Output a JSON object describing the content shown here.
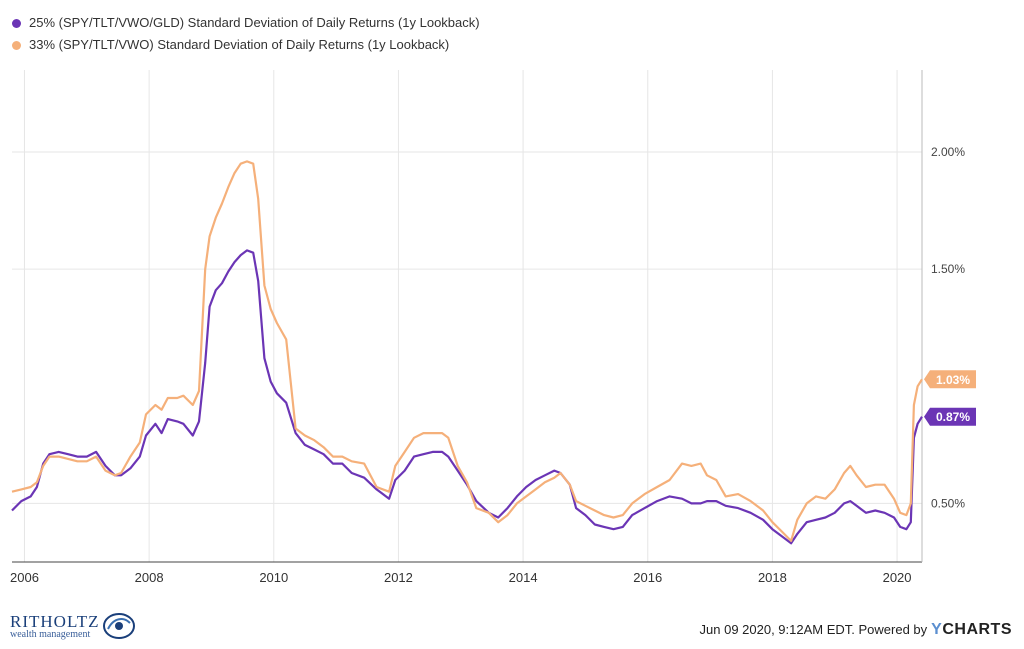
{
  "colors": {
    "series1": "#6b35b5",
    "series2": "#f5b07a",
    "grid": "#e6e6e6",
    "axis": "#444444"
  },
  "footer": {
    "brand_name": "RITHOLTZ",
    "brand_sub": "wealth management",
    "timestamp": "Jun 09 2020, 9:12AM EDT. Powered by",
    "provider_y": "Y",
    "provider_rest": "CHARTS"
  },
  "chart_data": {
    "type": "line",
    "title": "",
    "xlabel": "",
    "ylabel": "",
    "xlim": [
      2005.8,
      2020.4
    ],
    "ylim": [
      0.25,
      2.35
    ],
    "grid": true,
    "legend_position": "top-left",
    "y_ticks": [
      0.5,
      1.5,
      2.0
    ],
    "y_tick_labels": [
      "0.50%",
      "1.50%",
      "2.00%"
    ],
    "x_ticks": [
      2006,
      2008,
      2010,
      2012,
      2014,
      2016,
      2018,
      2020
    ],
    "x_tick_labels": [
      "2006",
      "2008",
      "2010",
      "2012",
      "2014",
      "2016",
      "2018",
      "2020"
    ],
    "series": [
      {
        "name": "25% (SPY/TLT/VWO/GLD) Standard Deviation of Daily Returns (1y Lookback)",
        "end_label": "0.87%",
        "points": [
          [
            2005.8,
            0.47
          ],
          [
            2005.95,
            0.51
          ],
          [
            2006.1,
            0.53
          ],
          [
            2006.2,
            0.57
          ],
          [
            2006.3,
            0.67
          ],
          [
            2006.4,
            0.71
          ],
          [
            2006.55,
            0.72
          ],
          [
            2006.7,
            0.71
          ],
          [
            2006.85,
            0.7
          ],
          [
            2007.0,
            0.7
          ],
          [
            2007.15,
            0.72
          ],
          [
            2007.3,
            0.66
          ],
          [
            2007.45,
            0.62
          ],
          [
            2007.55,
            0.62
          ],
          [
            2007.7,
            0.65
          ],
          [
            2007.85,
            0.7
          ],
          [
            2007.95,
            0.79
          ],
          [
            2008.1,
            0.84
          ],
          [
            2008.2,
            0.8
          ],
          [
            2008.3,
            0.86
          ],
          [
            2008.45,
            0.85
          ],
          [
            2008.55,
            0.84
          ],
          [
            2008.7,
            0.79
          ],
          [
            2008.8,
            0.85
          ],
          [
            2008.9,
            1.1
          ],
          [
            2008.97,
            1.34
          ],
          [
            2009.07,
            1.41
          ],
          [
            2009.17,
            1.44
          ],
          [
            2009.27,
            1.49
          ],
          [
            2009.37,
            1.53
          ],
          [
            2009.47,
            1.56
          ],
          [
            2009.57,
            1.58
          ],
          [
            2009.67,
            1.57
          ],
          [
            2009.75,
            1.45
          ],
          [
            2009.85,
            1.12
          ],
          [
            2009.95,
            1.02
          ],
          [
            2010.05,
            0.97
          ],
          [
            2010.2,
            0.93
          ],
          [
            2010.35,
            0.8
          ],
          [
            2010.5,
            0.75
          ],
          [
            2010.65,
            0.73
          ],
          [
            2010.8,
            0.71
          ],
          [
            2010.95,
            0.67
          ],
          [
            2011.1,
            0.67
          ],
          [
            2011.25,
            0.63
          ],
          [
            2011.45,
            0.61
          ],
          [
            2011.65,
            0.56
          ],
          [
            2011.85,
            0.52
          ],
          [
            2011.95,
            0.6
          ],
          [
            2012.1,
            0.64
          ],
          [
            2012.25,
            0.7
          ],
          [
            2012.4,
            0.71
          ],
          [
            2012.55,
            0.72
          ],
          [
            2012.7,
            0.72
          ],
          [
            2012.8,
            0.7
          ],
          [
            2012.95,
            0.64
          ],
          [
            2013.1,
            0.58
          ],
          [
            2013.25,
            0.51
          ],
          [
            2013.45,
            0.46
          ],
          [
            2013.6,
            0.44
          ],
          [
            2013.75,
            0.48
          ],
          [
            2013.9,
            0.53
          ],
          [
            2014.05,
            0.57
          ],
          [
            2014.2,
            0.6
          ],
          [
            2014.35,
            0.62
          ],
          [
            2014.5,
            0.64
          ],
          [
            2014.6,
            0.63
          ],
          [
            2014.75,
            0.58
          ],
          [
            2014.85,
            0.48
          ],
          [
            2015.0,
            0.45
          ],
          [
            2015.15,
            0.41
          ],
          [
            2015.3,
            0.4
          ],
          [
            2015.45,
            0.39
          ],
          [
            2015.6,
            0.4
          ],
          [
            2015.75,
            0.45
          ],
          [
            2015.95,
            0.48
          ],
          [
            2016.15,
            0.51
          ],
          [
            2016.35,
            0.53
          ],
          [
            2016.55,
            0.52
          ],
          [
            2016.7,
            0.5
          ],
          [
            2016.85,
            0.5
          ],
          [
            2016.95,
            0.51
          ],
          [
            2017.1,
            0.51
          ],
          [
            2017.25,
            0.49
          ],
          [
            2017.45,
            0.48
          ],
          [
            2017.65,
            0.46
          ],
          [
            2017.85,
            0.43
          ],
          [
            2018.0,
            0.39
          ],
          [
            2018.15,
            0.36
          ],
          [
            2018.3,
            0.33
          ],
          [
            2018.4,
            0.37
          ],
          [
            2018.55,
            0.42
          ],
          [
            2018.7,
            0.43
          ],
          [
            2018.85,
            0.44
          ],
          [
            2019.0,
            0.46
          ],
          [
            2019.15,
            0.5
          ],
          [
            2019.25,
            0.51
          ],
          [
            2019.35,
            0.49
          ],
          [
            2019.5,
            0.46
          ],
          [
            2019.65,
            0.47
          ],
          [
            2019.8,
            0.46
          ],
          [
            2019.95,
            0.44
          ],
          [
            2020.05,
            0.4
          ],
          [
            2020.15,
            0.39
          ],
          [
            2020.22,
            0.42
          ],
          [
            2020.27,
            0.78
          ],
          [
            2020.33,
            0.84
          ],
          [
            2020.4,
            0.87
          ]
        ]
      },
      {
        "name": "33% (SPY/TLT/VWO) Standard Deviation of Daily Returns (1y Lookback)",
        "end_label": "1.03%",
        "points": [
          [
            2005.8,
            0.55
          ],
          [
            2005.95,
            0.56
          ],
          [
            2006.1,
            0.57
          ],
          [
            2006.2,
            0.59
          ],
          [
            2006.3,
            0.66
          ],
          [
            2006.4,
            0.7
          ],
          [
            2006.55,
            0.7
          ],
          [
            2006.7,
            0.69
          ],
          [
            2006.85,
            0.68
          ],
          [
            2007.0,
            0.68
          ],
          [
            2007.15,
            0.7
          ],
          [
            2007.3,
            0.64
          ],
          [
            2007.45,
            0.62
          ],
          [
            2007.55,
            0.63
          ],
          [
            2007.7,
            0.7
          ],
          [
            2007.85,
            0.76
          ],
          [
            2007.95,
            0.88
          ],
          [
            2008.1,
            0.92
          ],
          [
            2008.2,
            0.9
          ],
          [
            2008.3,
            0.95
          ],
          [
            2008.45,
            0.95
          ],
          [
            2008.55,
            0.96
          ],
          [
            2008.7,
            0.92
          ],
          [
            2008.8,
            0.98
          ],
          [
            2008.9,
            1.5
          ],
          [
            2008.97,
            1.64
          ],
          [
            2009.07,
            1.72
          ],
          [
            2009.17,
            1.78
          ],
          [
            2009.27,
            1.85
          ],
          [
            2009.37,
            1.91
          ],
          [
            2009.47,
            1.95
          ],
          [
            2009.57,
            1.96
          ],
          [
            2009.67,
            1.95
          ],
          [
            2009.75,
            1.8
          ],
          [
            2009.85,
            1.43
          ],
          [
            2009.95,
            1.33
          ],
          [
            2010.05,
            1.27
          ],
          [
            2010.2,
            1.2
          ],
          [
            2010.35,
            0.82
          ],
          [
            2010.5,
            0.79
          ],
          [
            2010.65,
            0.77
          ],
          [
            2010.8,
            0.74
          ],
          [
            2010.95,
            0.7
          ],
          [
            2011.1,
            0.7
          ],
          [
            2011.25,
            0.68
          ],
          [
            2011.45,
            0.67
          ],
          [
            2011.65,
            0.57
          ],
          [
            2011.85,
            0.55
          ],
          [
            2011.95,
            0.66
          ],
          [
            2012.1,
            0.72
          ],
          [
            2012.25,
            0.78
          ],
          [
            2012.4,
            0.8
          ],
          [
            2012.55,
            0.8
          ],
          [
            2012.7,
            0.8
          ],
          [
            2012.8,
            0.78
          ],
          [
            2012.95,
            0.66
          ],
          [
            2013.1,
            0.59
          ],
          [
            2013.25,
            0.48
          ],
          [
            2013.45,
            0.46
          ],
          [
            2013.6,
            0.42
          ],
          [
            2013.75,
            0.45
          ],
          [
            2013.9,
            0.5
          ],
          [
            2014.05,
            0.53
          ],
          [
            2014.2,
            0.56
          ],
          [
            2014.35,
            0.59
          ],
          [
            2014.5,
            0.61
          ],
          [
            2014.6,
            0.63
          ],
          [
            2014.75,
            0.58
          ],
          [
            2014.85,
            0.51
          ],
          [
            2015.0,
            0.49
          ],
          [
            2015.15,
            0.47
          ],
          [
            2015.3,
            0.45
          ],
          [
            2015.45,
            0.44
          ],
          [
            2015.6,
            0.45
          ],
          [
            2015.75,
            0.5
          ],
          [
            2015.95,
            0.54
          ],
          [
            2016.15,
            0.57
          ],
          [
            2016.35,
            0.6
          ],
          [
            2016.55,
            0.67
          ],
          [
            2016.7,
            0.66
          ],
          [
            2016.85,
            0.67
          ],
          [
            2016.95,
            0.62
          ],
          [
            2017.1,
            0.6
          ],
          [
            2017.25,
            0.53
          ],
          [
            2017.45,
            0.54
          ],
          [
            2017.65,
            0.51
          ],
          [
            2017.85,
            0.47
          ],
          [
            2018.0,
            0.42
          ],
          [
            2018.15,
            0.38
          ],
          [
            2018.3,
            0.34
          ],
          [
            2018.4,
            0.43
          ],
          [
            2018.55,
            0.5
          ],
          [
            2018.7,
            0.53
          ],
          [
            2018.85,
            0.52
          ],
          [
            2019.0,
            0.56
          ],
          [
            2019.15,
            0.63
          ],
          [
            2019.25,
            0.66
          ],
          [
            2019.35,
            0.62
          ],
          [
            2019.5,
            0.57
          ],
          [
            2019.65,
            0.58
          ],
          [
            2019.8,
            0.58
          ],
          [
            2019.95,
            0.52
          ],
          [
            2020.05,
            0.46
          ],
          [
            2020.15,
            0.45
          ],
          [
            2020.22,
            0.5
          ],
          [
            2020.27,
            0.92
          ],
          [
            2020.33,
            1.0
          ],
          [
            2020.4,
            1.03
          ]
        ]
      }
    ]
  }
}
